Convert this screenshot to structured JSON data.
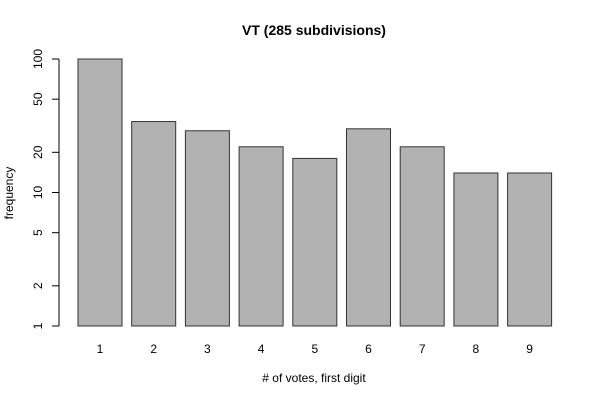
{
  "chart_data": {
    "type": "bar",
    "title": "VT (285 subdivisions)",
    "xlabel": "# of votes, first digit",
    "ylabel": "frequency",
    "y_scale": "log",
    "ylim": [
      1,
      100
    ],
    "y_ticks": [
      1,
      2,
      5,
      10,
      20,
      50,
      100
    ],
    "grid": false,
    "colors": {
      "bar_fill": "#b2b2b2",
      "bar_stroke": "#333333"
    },
    "categories": [
      "1",
      "2",
      "3",
      "4",
      "5",
      "6",
      "7",
      "8",
      "9"
    ],
    "values": [
      100,
      34,
      29,
      22,
      18,
      30,
      22,
      14,
      14
    ]
  }
}
